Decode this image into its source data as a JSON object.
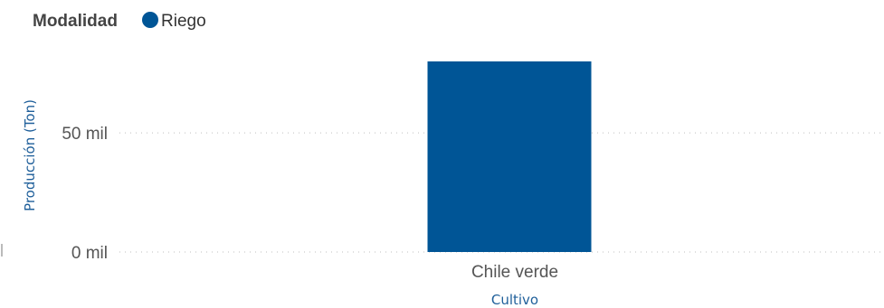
{
  "chart_data": {
    "type": "bar",
    "legend": {
      "title": "Modalidad",
      "placement": "top-left",
      "items": [
        {
          "label": "Riego",
          "color": "#005596"
        }
      ]
    },
    "categories": [
      "Chile verde"
    ],
    "series": [
      {
        "name": "Riego",
        "values": [
          80000
        ],
        "color": "#005596"
      }
    ],
    "xlabel": "Cultivo",
    "ylabel": "Producción (Ton)",
    "ylim": [
      0,
      80000
    ],
    "yticks": [
      {
        "value": 0,
        "label": "0 mil"
      },
      {
        "value": 50000,
        "label": "50 mil"
      }
    ],
    "grid": true,
    "axis_title_color": "#1f5f9a"
  }
}
